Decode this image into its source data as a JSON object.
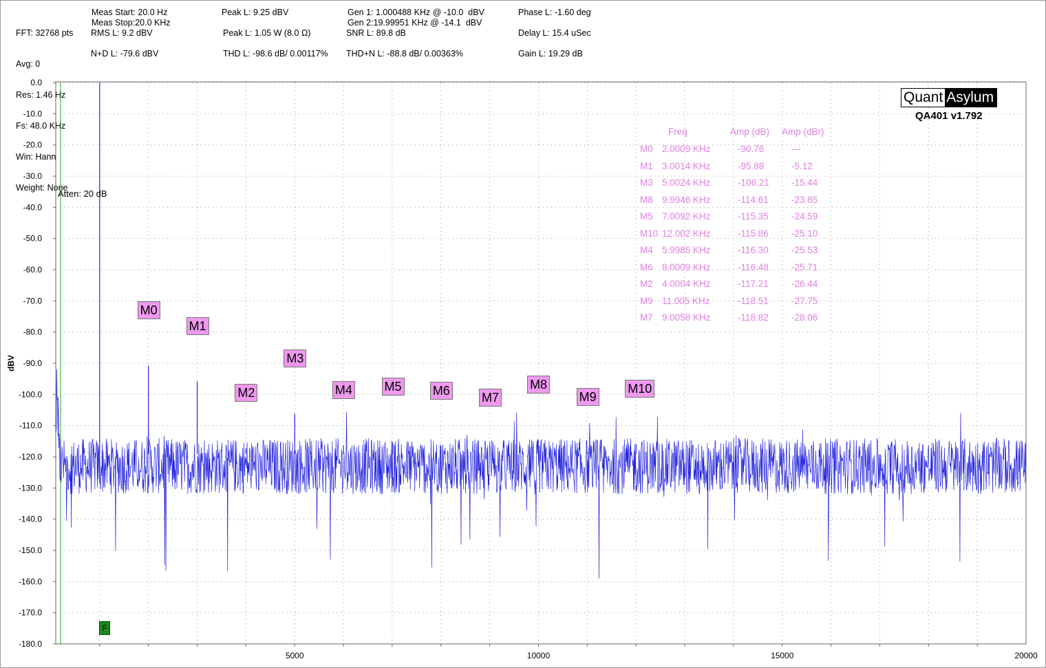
{
  "header": {
    "fft": "FFT: 32768 pts",
    "avg": "Avg: 0",
    "res": "Res: 1.46 Hz",
    "fs": "Fs: 48.0 KHz",
    "win": "Win: Hann",
    "weight": "Weight: None",
    "meas_start": "Meas Start: 20.0 Hz",
    "meas_stop": "Meas Stop:20.0 KHz",
    "rms": "RMS L: 9.2 dBV",
    "nd": "N+D L: -79.6 dBV",
    "peak_dbv": "Peak L: 9.25 dBV",
    "peak_w": "Peak L: 1.05 W (8.0 Ω)",
    "thd": "THD L: -98.6 dB/ 0.00117%",
    "gen1": "Gen 1: 1.000488 KHz @ -10.0  dBV",
    "gen2": "Gen 2:19.99951 KHz @ -14.1  dBV",
    "snr": "SNR L: 89.8 dB",
    "thdn": "THD+N L: -88.8 dB/ 0.00363%",
    "phase": "Phase L: -1.60 deg",
    "delay": "Delay L: 15.4 uSec",
    "gain": "Gain L: 19.29 dB"
  },
  "logo": {
    "left": "Quant",
    "right": "Asylum",
    "version": "QA401 v1.792"
  },
  "atten_label": "Atten: 20 dB",
  "f_marker": "F",
  "marker_table": {
    "headers": [
      "Freq",
      "Amp (dB)",
      "Amp (dBr)"
    ],
    "rows": [
      {
        "name": "M0",
        "freq": "2.0009 KHz",
        "amp": "-90.76",
        "ampr": "---"
      },
      {
        "name": "M1",
        "freq": "3.0014 KHz",
        "amp": "-95.88",
        "ampr": "-5.12"
      },
      {
        "name": "M3",
        "freq": "5.0024 KHz",
        "amp": "-106.21",
        "ampr": "-15.44"
      },
      {
        "name": "M8",
        "freq": "9.9946 KHz",
        "amp": "-114.61",
        "ampr": "-23.85"
      },
      {
        "name": "M5",
        "freq": "7.0092 KHz",
        "amp": "-115.35",
        "ampr": "-24.59"
      },
      {
        "name": "M10",
        "freq": "12.002 KHz",
        "amp": "-115.86",
        "ampr": "-25.10"
      },
      {
        "name": "M4",
        "freq": "5.9985 KHz",
        "amp": "-116.30",
        "ampr": "-25.53"
      },
      {
        "name": "M6",
        "freq": "8.0009 KHz",
        "amp": "-116.48",
        "ampr": "-25.71"
      },
      {
        "name": "M2",
        "freq": "4.0004 KHz",
        "amp": "-117.21",
        "ampr": "-26.44"
      },
      {
        "name": "M9",
        "freq": "11.005 KHz",
        "amp": "-118.51",
        "ampr": "-27.75"
      },
      {
        "name": "M7",
        "freq": "9.0058 KHz",
        "amp": "-118.82",
        "ampr": "-28.06"
      }
    ]
  },
  "chart_data": {
    "type": "line",
    "xlabel": "",
    "ylabel": "dBV",
    "xlim": [
      20,
      20000
    ],
    "ylim": [
      -180,
      0
    ],
    "x_ticks": [
      5000,
      10000,
      15000,
      20000
    ],
    "x_tick_labels": [
      "5000",
      "10000",
      "15000",
      "20000"
    ],
    "y_ticks": [
      0,
      -10,
      -20,
      -30,
      -40,
      -50,
      -60,
      -70,
      -80,
      -90,
      -100,
      -110,
      -120,
      -130,
      -140,
      -150,
      -160,
      -170,
      -180
    ],
    "y_tick_labels": [
      "0.0",
      "-10.0",
      "-20.0",
      "-30.0",
      "-40.0",
      "-50.0",
      "-60.0",
      "-70.0",
      "-80.0",
      "-90.0",
      "-100.0",
      "-110.0",
      "-120.0",
      "-130.0",
      "-140.0",
      "-150.0",
      "-160.0",
      "-170.0",
      "-180.0"
    ],
    "grid": true,
    "series_color": "#2222dd",
    "noise_floor": -123,
    "peaks": [
      {
        "x": 1000.5,
        "y": 0
      },
      {
        "x": 2000.9,
        "y": -90.76
      },
      {
        "x": 3001.4,
        "y": -95.88
      },
      {
        "x": 4000.4,
        "y": -117.21
      },
      {
        "x": 5002.4,
        "y": -106.21
      },
      {
        "x": 5998.5,
        "y": -116.3
      },
      {
        "x": 7009.2,
        "y": -115.35
      },
      {
        "x": 8000.9,
        "y": -116.48
      },
      {
        "x": 9005.8,
        "y": -118.82
      },
      {
        "x": 9994.6,
        "y": -114.61
      },
      {
        "x": 11005,
        "y": -118.51
      },
      {
        "x": 12002,
        "y": -115.86
      }
    ],
    "markers": [
      {
        "label": "M0",
        "x": 2000.9,
        "y": -90.76
      },
      {
        "label": "M1",
        "x": 3001.4,
        "y": -95.88
      },
      {
        "label": "M2",
        "x": 4000.4,
        "y": -117.21
      },
      {
        "label": "M3",
        "x": 5002.4,
        "y": -106.21
      },
      {
        "label": "M4",
        "x": 5998.5,
        "y": -116.3
      },
      {
        "label": "M5",
        "x": 7009.2,
        "y": -115.35
      },
      {
        "label": "M6",
        "x": 8000.9,
        "y": -116.48
      },
      {
        "label": "M7",
        "x": 9005.8,
        "y": -118.82
      },
      {
        "label": "M8",
        "x": 9994.6,
        "y": -114.61
      },
      {
        "label": "M9",
        "x": 11005,
        "y": -118.51
      },
      {
        "label": "M10",
        "x": 12002,
        "y": -115.86
      }
    ]
  }
}
